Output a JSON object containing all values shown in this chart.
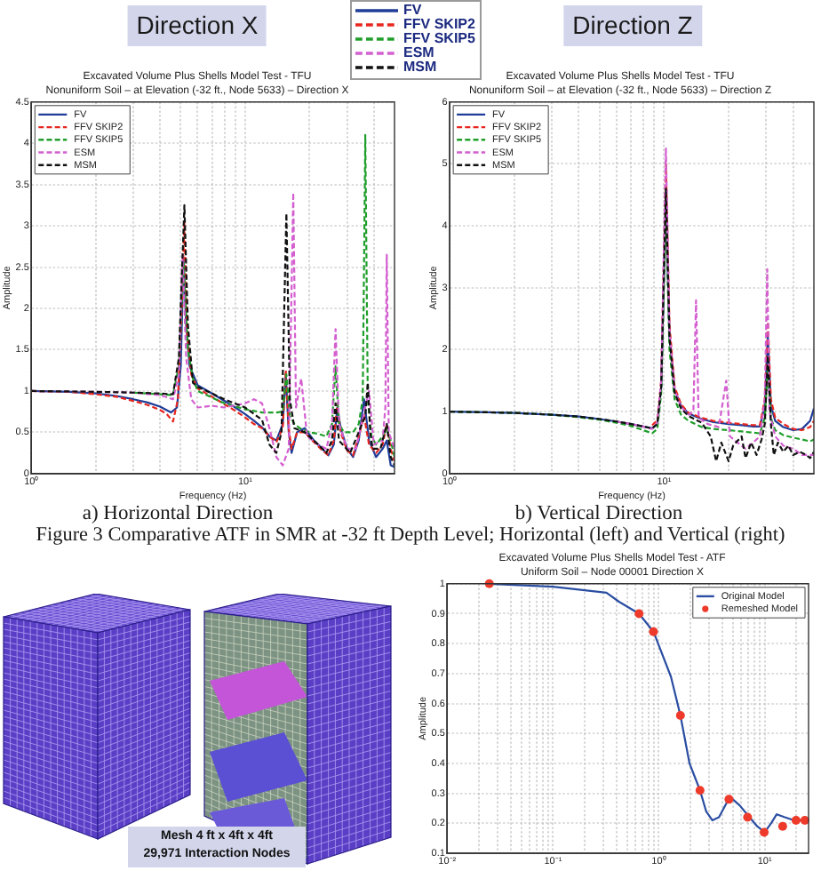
{
  "chart_data": [
    {
      "type": "line",
      "title": "Excavated Volume Plus Shells Model Test - TFU",
      "subtitle": "Nonuniform Soil – at Elevation (-32 ft., Node 5633) – Direction X",
      "xlabel": "Frequency (Hz)",
      "ylabel": "Amplitude",
      "log": "x",
      "grid": true,
      "legend": "top left",
      "xlim": [
        1,
        50
      ],
      "xticks": [
        {
          "value": 1,
          "label": "10⁰"
        },
        {
          "value": 2,
          "label": null
        },
        {
          "value": 3,
          "label": null
        },
        {
          "value": 4,
          "label": null
        },
        {
          "value": 5,
          "label": null
        },
        {
          "value": 6,
          "label": null
        },
        {
          "value": 7,
          "label": null
        },
        {
          "value": 8,
          "label": null
        },
        {
          "value": 9,
          "label": null
        },
        {
          "value": 10,
          "label": "10¹"
        },
        {
          "value": 20,
          "label": null
        },
        {
          "value": 30,
          "label": null
        },
        {
          "value": 40,
          "label": null
        }
      ],
      "ylim": [
        0,
        4.5
      ],
      "yticks": [
        0,
        0.5,
        1,
        1.5,
        2,
        2.5,
        3,
        3.5,
        4,
        4.5
      ],
      "annotations": [
        "Direction X",
        "a) Horizontal Direction",
        "Figure 3 Comparative ATF in SMR at -32 ft Depth Level; Horizontal (left) and Vertical (right)"
      ],
      "series": [
        {
          "name": "FV",
          "color": "#1f3d99",
          "line_style": "solid",
          "x": [
            1,
            1.5,
            2,
            2.5,
            3,
            3.5,
            4,
            4.5,
            4.8,
            5,
            5.15,
            5.3,
            5.5,
            6,
            7,
            8,
            9,
            10,
            11,
            12,
            13,
            14,
            15,
            15.5,
            16,
            16.5,
            17.5,
            19,
            21,
            23,
            24.5,
            26,
            27,
            28,
            30,
            32,
            34,
            36,
            38,
            41,
            44,
            46,
            48,
            50
          ],
          "values": [
            1,
            0.99,
            0.97,
            0.94,
            0.9,
            0.86,
            0.81,
            0.74,
            0.8,
            1.3,
            2.6,
            1.8,
            1.3,
            1.07,
            0.97,
            0.88,
            0.8,
            0.72,
            0.64,
            0.56,
            0.45,
            0.4,
            0.6,
            1.2,
            0.5,
            0.25,
            0.5,
            0.55,
            0.4,
            0.3,
            0.22,
            0.35,
            0.8,
            0.55,
            0.3,
            0.2,
            0.4,
            0.9,
            0.4,
            0.2,
            0.3,
            0.4,
            0.1,
            0.08
          ]
        },
        {
          "name": "FFV SKIP2",
          "color": "#e8261e",
          "line_style": "dashed",
          "x": [
            1,
            1.5,
            2,
            2.5,
            3,
            3.5,
            4,
            4.3,
            4.6,
            4.85,
            5.05,
            5.2,
            5.35,
            5.6,
            6,
            7,
            8,
            9,
            10,
            11,
            12,
            13,
            14,
            15,
            15.5,
            16,
            16.5,
            17.5,
            19,
            21,
            23,
            24.5,
            26,
            27,
            28,
            30,
            32,
            34,
            36,
            38,
            41,
            44,
            46,
            48,
            50
          ],
          "values": [
            1,
            0.99,
            0.96,
            0.93,
            0.88,
            0.83,
            0.77,
            0.72,
            0.63,
            0.9,
            2,
            3.05,
            1.7,
            1.2,
            1.03,
            0.93,
            0.84,
            0.76,
            0.68,
            0.6,
            0.55,
            0.45,
            0.38,
            0.55,
            1.25,
            0.55,
            0.3,
            0.5,
            0.5,
            0.38,
            0.28,
            0.22,
            0.4,
            0.85,
            0.5,
            0.28,
            0.22,
            0.45,
            0.7,
            0.35,
            0.25,
            0.35,
            0.6,
            0.3,
            0.15
          ]
        },
        {
          "name": "FFV SKIP5",
          "color": "#1f9e2a",
          "line_style": "dashed",
          "x": [
            3,
            4,
            4.6,
            4.9,
            5.15,
            5.4,
            5.7,
            6,
            7,
            8,
            10,
            12,
            14,
            15,
            15.6,
            16.2,
            17,
            18,
            20,
            22,
            24,
            25.5,
            26.5,
            27.5,
            29,
            32,
            34,
            35.5,
            36.5,
            37.5,
            39,
            41,
            44,
            46,
            48,
            50
          ],
          "values": [
            0.98,
            0.96,
            0.95,
            1.3,
            2.55,
            1.5,
            1.15,
            1,
            0.92,
            0.85,
            0.78,
            0.74,
            0.74,
            0.75,
            1.2,
            0.7,
            0.6,
            0.55,
            0.5,
            0.48,
            0.45,
            0.6,
            1.3,
            0.6,
            0.5,
            0.5,
            0.6,
            0.9,
            4.1,
            0.9,
            0.45,
            0.35,
            0.45,
            0.55,
            0.4,
            0.2
          ]
        },
        {
          "name": "ESM",
          "color": "#d45fd0",
          "line_style": "dashed",
          "x": [
            1,
            2,
            3,
            4,
            4.6,
            4.9,
            5.1,
            5.3,
            5.6,
            6,
            7,
            8,
            10,
            11,
            12,
            13,
            14,
            15,
            16,
            16.8,
            17.3,
            18.3,
            19.5,
            22,
            24,
            25.5,
            26.5,
            27.5,
            30,
            33,
            35,
            38,
            40,
            44,
            45.3,
            46,
            47,
            50
          ],
          "values": [
            1,
            0.99,
            0.98,
            0.95,
            0.9,
            1.2,
            2.65,
            1.4,
            0.9,
            0.8,
            0.82,
            0.8,
            0.85,
            0.9,
            0.85,
            0.55,
            0.2,
            0.1,
            0.3,
            3.4,
            0.8,
            1.15,
            0.45,
            0.35,
            0.3,
            0.6,
            1.75,
            0.6,
            0.3,
            0.3,
            0.6,
            1,
            0.35,
            0.4,
            0.8,
            2.65,
            0.5,
            0.3
          ]
        },
        {
          "name": "MSM",
          "color": "#111111",
          "line_style": "dashed",
          "x": [
            1,
            2,
            3,
            4,
            4.6,
            4.9,
            5.2,
            5.4,
            5.7,
            6,
            8,
            10,
            12,
            13,
            14,
            14.8,
            15.6,
            16.2,
            17,
            19,
            22,
            24,
            25.5,
            26.5,
            27.5,
            31,
            34,
            36.5,
            37.5,
            38.5,
            39.5,
            43,
            46,
            48,
            50
          ],
          "values": [
            1,
            0.99,
            0.98,
            0.97,
            0.96,
            1.4,
            3.25,
            1.8,
            1.1,
            1.05,
            0.9,
            0.8,
            0.65,
            0.35,
            0.25,
            0.5,
            3.15,
            0.9,
            0.55,
            0.5,
            0.35,
            0.25,
            0.4,
            0.85,
            0.4,
            0.25,
            0.5,
            0.7,
            1.1,
            0.5,
            0.3,
            0.3,
            0.6,
            0.2,
            0.1
          ]
        }
      ]
    },
    {
      "type": "line",
      "title": "Excavated Volume Plus Shells Model Test - TFU",
      "subtitle": "Nonuniform Soil – at Elevation (-32 ft., Node 5633) – Direction Z",
      "xlabel": "Frequency (Hz)",
      "ylabel": "Amplitude",
      "log": "x",
      "grid": true,
      "legend": "top left",
      "xlim": [
        1,
        50
      ],
      "xticks": [
        {
          "value": 1,
          "label": "10⁰"
        },
        {
          "value": 2,
          "label": null
        },
        {
          "value": 3,
          "label": null
        },
        {
          "value": 4,
          "label": null
        },
        {
          "value": 5,
          "label": null
        },
        {
          "value": 6,
          "label": null
        },
        {
          "value": 7,
          "label": null
        },
        {
          "value": 8,
          "label": null
        },
        {
          "value": 9,
          "label": null
        },
        {
          "value": 10,
          "label": "10¹"
        },
        {
          "value": 20,
          "label": null
        },
        {
          "value": 30,
          "label": null
        },
        {
          "value": 40,
          "label": null
        }
      ],
      "ylim": [
        0,
        6
      ],
      "yticks": [
        0,
        1,
        2,
        3,
        4,
        5,
        6
      ],
      "annotations": [
        "Direction Z",
        "b) Vertical Direction"
      ],
      "series": [
        {
          "name": "FV",
          "color": "#1f3d99",
          "line_style": "solid",
          "x": [
            1,
            1.5,
            2,
            3,
            4,
            5,
            6,
            7,
            8,
            8.8,
            9.3,
            9.7,
            10.2,
            10.6,
            11.2,
            12,
            13,
            15,
            17,
            20,
            23,
            26,
            28,
            29.5,
            30.5,
            31.5,
            33,
            36,
            40,
            44,
            48,
            50
          ],
          "values": [
            1,
            0.99,
            0.98,
            0.95,
            0.92,
            0.88,
            0.84,
            0.8,
            0.76,
            0.73,
            0.8,
            1.4,
            4.45,
            2.2,
            1.35,
            1.1,
            0.97,
            0.88,
            0.83,
            0.8,
            0.78,
            0.76,
            0.76,
            1.1,
            2.2,
            1.1,
            0.85,
            0.75,
            0.7,
            0.72,
            0.85,
            1.05
          ]
        },
        {
          "name": "FFV SKIP2",
          "color": "#e8261e",
          "line_style": "dashed",
          "x": [
            8.8,
            9.3,
            9.7,
            10.2,
            10.6,
            11.2,
            12,
            13,
            15,
            17,
            20,
            23,
            26,
            28,
            29.5,
            30.5,
            31.5,
            33,
            36,
            40,
            44,
            48,
            50
          ],
          "values": [
            0.78,
            0.86,
            1.5,
            5,
            2.4,
            1.4,
            1.12,
            0.98,
            0.9,
            0.85,
            0.82,
            0.8,
            0.78,
            0.78,
            1.2,
            2.45,
            1.2,
            0.9,
            0.8,
            0.72,
            0.7,
            0.75,
            0.85
          ]
        },
        {
          "name": "FFV SKIP5",
          "color": "#1f9e2a",
          "line_style": "dashed",
          "x": [
            1,
            2,
            3,
            4,
            5,
            6,
            7,
            8,
            8.8,
            9.3,
            9.7,
            10.2,
            10.6,
            11.2,
            12,
            13,
            15,
            17,
            20,
            23,
            26,
            28,
            29.5,
            30.5,
            31.5,
            33,
            36,
            40,
            44,
            48,
            50
          ],
          "values": [
            1,
            0.98,
            0.95,
            0.91,
            0.87,
            0.82,
            0.77,
            0.7,
            0.65,
            0.72,
            1.3,
            4.3,
            2,
            1.2,
            0.95,
            0.85,
            0.75,
            0.72,
            0.7,
            0.68,
            0.66,
            0.65,
            0.9,
            1.7,
            0.9,
            0.7,
            0.62,
            0.58,
            0.55,
            0.52,
            0.55
          ]
        },
        {
          "name": "ESM",
          "color": "#d45fd0",
          "line_style": "dashed",
          "x": [
            6,
            7,
            8,
            8.8,
            9.3,
            9.7,
            10.2,
            10.6,
            11.2,
            12,
            13,
            13.7,
            14.1,
            14.5,
            16,
            18,
            19.5,
            20.3,
            22,
            24,
            26,
            28,
            29.5,
            30.3,
            31,
            33,
            36,
            40,
            44,
            48,
            50
          ],
          "values": [
            0.84,
            0.8,
            0.76,
            0.72,
            0.82,
            1.5,
            5.25,
            2.3,
            1.35,
            1.08,
            0.95,
            1,
            2.8,
            0.9,
            0.8,
            0.75,
            1.5,
            0.6,
            0.5,
            0.4,
            0.5,
            0.6,
            1.2,
            3.3,
            1,
            0.6,
            0.45,
            0.4,
            0.3,
            0.3,
            0.3
          ]
        },
        {
          "name": "MSM",
          "color": "#111111",
          "line_style": "dashed",
          "x": [
            1,
            2,
            3,
            4,
            5,
            6,
            7,
            8,
            8.8,
            9.3,
            9.7,
            10.2,
            10.6,
            11.2,
            12,
            13,
            15,
            16.5,
            17.5,
            18.5,
            20,
            21,
            23,
            24,
            25.5,
            27,
            28.5,
            29.5,
            30.5,
            31.5,
            32.5,
            34,
            36,
            38,
            40,
            43,
            46,
            48,
            50
          ],
          "values": [
            1,
            0.98,
            0.95,
            0.92,
            0.88,
            0.84,
            0.8,
            0.76,
            0.73,
            0.8,
            1.4,
            4.6,
            2.2,
            1.3,
            1.05,
            0.93,
            0.82,
            0.6,
            0.2,
            0.5,
            0.2,
            0.45,
            0.6,
            0.25,
            0.5,
            0.3,
            0.55,
            0.8,
            1.9,
            0.8,
            0.3,
            0.5,
            0.35,
            0.45,
            0.3,
            0.35,
            0.3,
            0.25,
            0.35
          ]
        }
      ]
    },
    {
      "type": "line",
      "title": "Excavated Volume Plus Shells Model Test - ATF",
      "subtitle": "Uniform Soil – Node 00001 Direction X",
      "ylabel": "Amplitude",
      "log": "x",
      "grid": true,
      "legend": "top right",
      "xlim": [
        0.01,
        26
      ],
      "xticks": [
        {
          "value": 0.01,
          "label": "10⁻²"
        },
        {
          "value": 0.02,
          "label": null
        },
        {
          "value": 0.03,
          "label": null
        },
        {
          "value": 0.04,
          "label": null
        },
        {
          "value": 0.05,
          "label": null
        },
        {
          "value": 0.06,
          "label": null
        },
        {
          "value": 0.07,
          "label": null
        },
        {
          "value": 0.08,
          "label": null
        },
        {
          "value": 0.09,
          "label": null
        },
        {
          "value": 0.1,
          "label": "10⁻¹"
        },
        {
          "value": 0.2,
          "label": null
        },
        {
          "value": 0.3,
          "label": null
        },
        {
          "value": 0.4,
          "label": null
        },
        {
          "value": 0.5,
          "label": null
        },
        {
          "value": 0.6,
          "label": null
        },
        {
          "value": 0.7,
          "label": null
        },
        {
          "value": 0.8,
          "label": null
        },
        {
          "value": 0.9,
          "label": null
        },
        {
          "value": 1,
          "label": "10⁰"
        },
        {
          "value": 2,
          "label": null
        },
        {
          "value": 3,
          "label": null
        },
        {
          "value": 4,
          "label": null
        },
        {
          "value": 5,
          "label": null
        },
        {
          "value": 6,
          "label": null
        },
        {
          "value": 7,
          "label": null
        },
        {
          "value": 8,
          "label": null
        },
        {
          "value": 9,
          "label": null
        },
        {
          "value": 10,
          "label": "10¹"
        },
        {
          "value": 20,
          "label": null
        }
      ],
      "ylim": [
        0.1,
        1
      ],
      "yticks": [
        0.1,
        0.2,
        0.3,
        0.4,
        0.5,
        0.6,
        0.7,
        0.8,
        0.9,
        1
      ],
      "series": [
        {
          "name": "Original Model",
          "type": "line",
          "color": "#2b4ea2",
          "line_style": "solid",
          "x": [
            0.025,
            0.1,
            0.32,
            0.42,
            0.65,
            0.89,
            1.3,
            1.6,
            1.95,
            2.45,
            2.8,
            3.2,
            3.7,
            4.4,
            5,
            5.8,
            7.2,
            8.5,
            10,
            11.5,
            13,
            15.5,
            19,
            25
          ],
          "values": [
            1,
            0.99,
            0.97,
            0.94,
            0.9,
            0.84,
            0.69,
            0.56,
            0.4,
            0.31,
            0.24,
            0.21,
            0.22,
            0.27,
            0.28,
            0.26,
            0.22,
            0.19,
            0.17,
            0.2,
            0.23,
            0.22,
            0.21,
            0.21
          ]
        },
        {
          "name": "Remeshed Model",
          "type": "scatter",
          "color": "#ee3a2a",
          "marker": "circle",
          "x": [
            0.025,
            0.65,
            0.89,
            1.6,
            2.45,
            4.6,
            6.9,
            9.9,
            14.8,
            19.8,
            24
          ],
          "values": [
            1,
            0.9,
            0.84,
            0.56,
            0.31,
            0.28,
            0.22,
            0.17,
            0.19,
            0.21,
            0.21
          ]
        }
      ]
    },
    {
      "type": "other",
      "annotations": [
        "Mesh 4 ft x 4ft x 4ft",
        "29,971 Interaction Nodes"
      ]
    }
  ]
}
